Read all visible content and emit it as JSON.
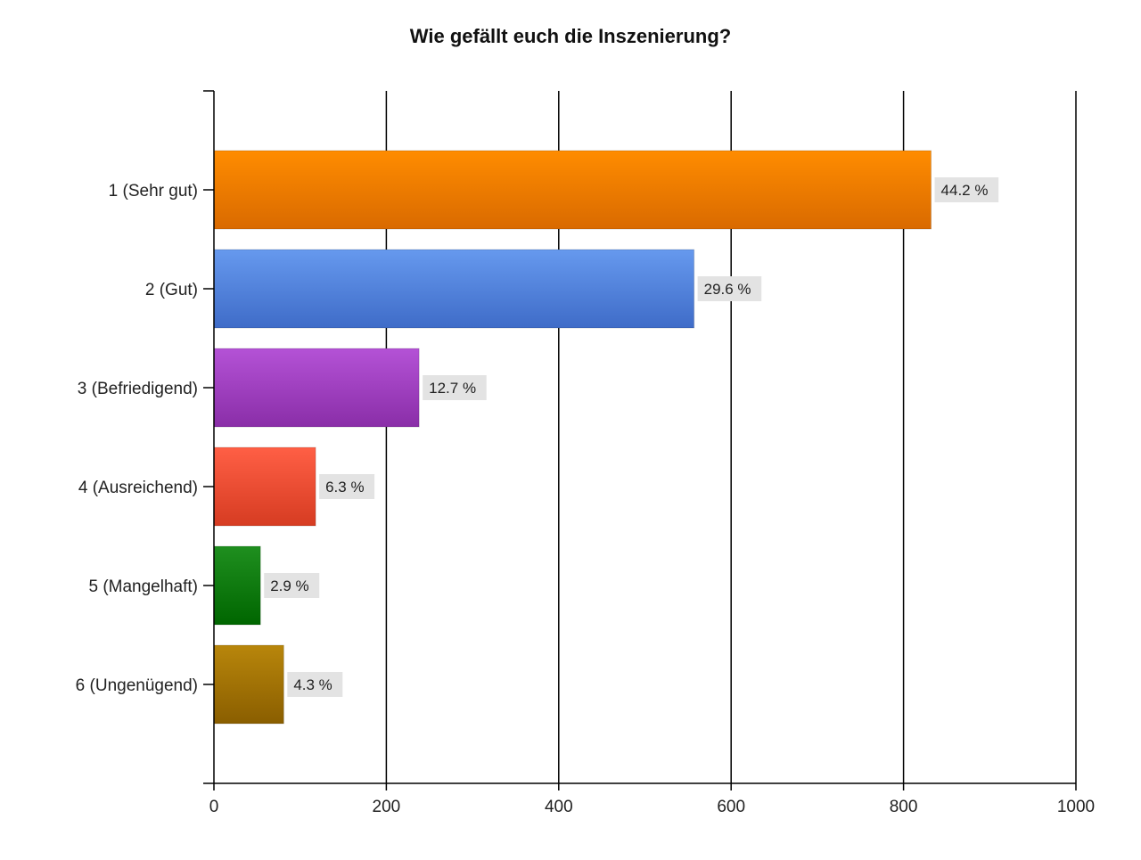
{
  "chart_data": {
    "type": "bar",
    "orientation": "horizontal",
    "title": "Wie gefällt euch die Inszenierung?",
    "xlabel": "",
    "ylabel": "",
    "xlim": [
      0,
      1000
    ],
    "x_ticks": [
      "0",
      "200",
      "400",
      "600",
      "800",
      "1000"
    ],
    "grid": true,
    "legend": "none",
    "categories": [
      "1 (Sehr gut)",
      "2 (Gut)",
      "3 (Befriedigend)",
      "4 (Ausreichend)",
      "5 (Mangelhaft)",
      "6 (Ungenügend)"
    ],
    "values": [
      832,
      557,
      238,
      118,
      54,
      81
    ],
    "data_labels": [
      "44.2 %",
      "29.6 %",
      "12.7 %",
      "6.3 %",
      "2.9 %",
      "4.3 %"
    ],
    "colors": [
      [
        "#ff8c00",
        "#d96a00"
      ],
      [
        "#6699ee",
        "#3f6cc8"
      ],
      [
        "#b452d6",
        "#8a2ea8"
      ],
      [
        "#ff5f45",
        "#d63c22"
      ],
      [
        "#1f8f1f",
        "#006600"
      ],
      [
        "#b8860b",
        "#8a5e00"
      ]
    ]
  }
}
